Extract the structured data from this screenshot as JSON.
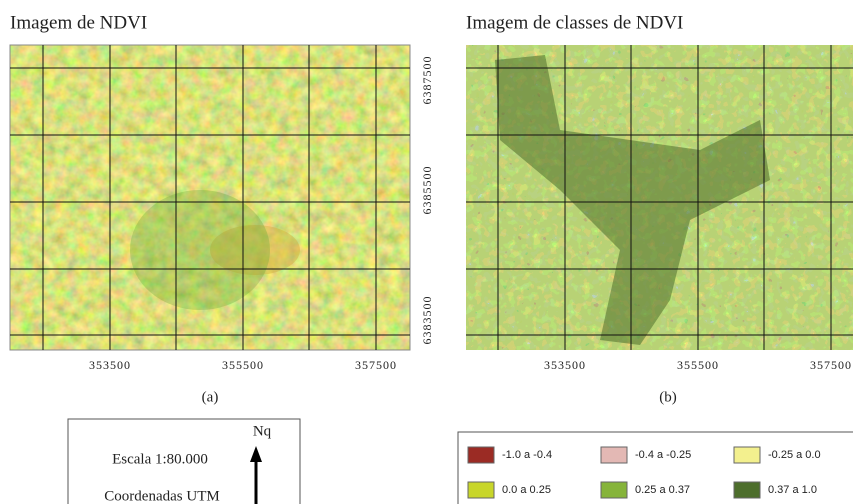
{
  "panels": [
    {
      "title": "Imagem de NDVI",
      "caption": "(a)",
      "xticks": [
        "353500",
        "355500",
        "357500"
      ],
      "yticks": [
        "6387500",
        "6385500",
        "6383500"
      ]
    },
    {
      "title": "Imagem de classes de NDVI",
      "caption": "(b)",
      "xticks": [
        "353500",
        "355500",
        "357500"
      ]
    }
  ],
  "info_box": {
    "scale": "Escala 1:80.000",
    "coordinates": "Coordenadas UTM",
    "north": "Nq"
  },
  "legend": [
    {
      "label": "-1.0 a -0.4",
      "color": "#9b2b24"
    },
    {
      "label": "-0.4 a -0.25",
      "color": "#e3b8b4"
    },
    {
      "label": "-0.25 a 0.0",
      "color": "#f3f08e"
    },
    {
      "label": "0.0 a 0.25",
      "color": "#c8d62a"
    },
    {
      "label": "0.25 a 0.37",
      "color": "#86b43a"
    },
    {
      "label": "0.37 a 1.0",
      "color": "#4d6e2c"
    }
  ]
}
